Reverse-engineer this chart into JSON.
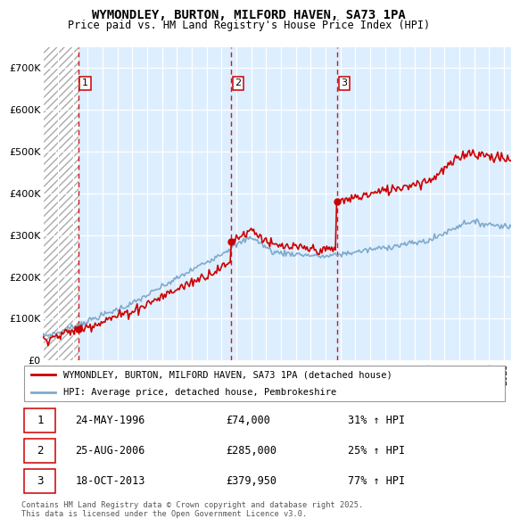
{
  "title": "WYMONDLEY, BURTON, MILFORD HAVEN, SA73 1PA",
  "subtitle": "Price paid vs. HM Land Registry's House Price Index (HPI)",
  "legend_line1": "WYMONDLEY, BURTON, MILFORD HAVEN, SA73 1PA (detached house)",
  "legend_line2": "HPI: Average price, detached house, Pembrokeshire",
  "transactions": [
    {
      "num": 1,
      "date": "24-MAY-1996",
      "price": 74000,
      "pct": "31%",
      "dir": "↑",
      "year": 1996.38
    },
    {
      "num": 2,
      "date": "25-AUG-2006",
      "price": 285000,
      "pct": "25%",
      "dir": "↑",
      "year": 2006.65
    },
    {
      "num": 3,
      "date": "18-OCT-2013",
      "price": 379950,
      "pct": "77%",
      "dir": "↑",
      "year": 2013.79
    }
  ],
  "footer": "Contains HM Land Registry data © Crown copyright and database right 2025.\nThis data is licensed under the Open Government Licence v3.0.",
  "red_color": "#cc0000",
  "blue_color": "#7faacc",
  "bg_plot": "#ddeeff",
  "ylim": [
    0,
    750000
  ],
  "xlim_start": 1994.0,
  "xlim_end": 2025.5,
  "yticks": [
    0,
    100000,
    200000,
    300000,
    400000,
    500000,
    600000,
    700000
  ],
  "ytick_labels": [
    "£0",
    "£100K",
    "£200K",
    "£300K",
    "£400K",
    "£500K",
    "£600K",
    "£700K"
  ]
}
